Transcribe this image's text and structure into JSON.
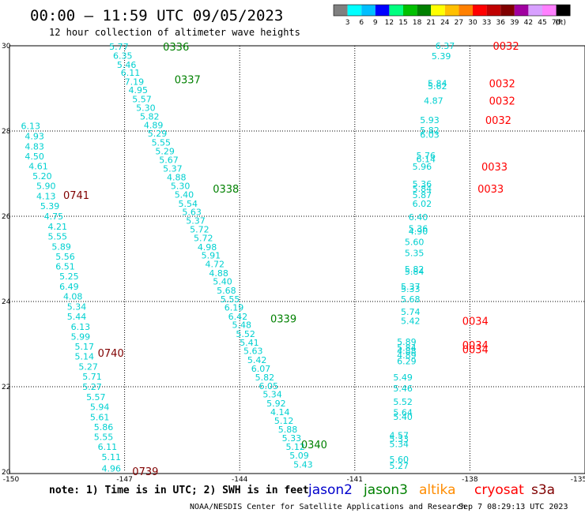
{
  "header": {
    "title": "00:00 — 11:59 UTC 09/05/2023",
    "subtitle": "12 hour collection of altimeter wave heights"
  },
  "colorbar": {
    "unit": "(ft)",
    "ticks": [
      "3",
      "6",
      "9",
      "12",
      "15",
      "18",
      "21",
      "24",
      "27",
      "30",
      "33",
      "36",
      "39",
      "42",
      "45",
      "70"
    ],
    "colors": [
      "#808080",
      "#00ffff",
      "#00bfff",
      "#0000ff",
      "#00ff7f",
      "#00c000",
      "#008000",
      "#ffff00",
      "#ffc000",
      "#ff8000",
      "#ff0000",
      "#c00000",
      "#800000",
      "#a000a0",
      "#d8a0ff",
      "#ff80ff",
      "#000000"
    ]
  },
  "footer": {
    "note": "note:  1) Time is in UTC;  2) SWH is in feet",
    "legend": [
      {
        "label": "jason2",
        "color": "#0000cc"
      },
      {
        "label": "jason3",
        "color": "#008000"
      },
      {
        "label": "altika",
        "color": "#ff8c00"
      },
      {
        "label": "cryosat",
        "color": "#ff0000"
      },
      {
        "label": "s3a",
        "color": "#800000"
      }
    ],
    "credit": "NOAA/NESDIS Center for Satellite Applications and Research",
    "timestamp": "Sep  7 08:29:13 UTC 2023"
  },
  "chart_data": {
    "type": "scatter",
    "xlim": [
      -150,
      -135
    ],
    "ylim": [
      20,
      30
    ],
    "x_ticks": [
      "-150",
      "-147",
      "-144",
      "-141",
      "-138",
      "-135"
    ],
    "y_ticks": [
      "30",
      "28",
      "26",
      "24",
      "22",
      "20"
    ],
    "grid": true,
    "value_color": "#00d0d0",
    "tracks": [
      {
        "name": "",
        "color": "#800000",
        "time_labels": [
          {
            "text": "0741",
            "x": -148.6,
            "y": 26.5
          },
          {
            "text": "0740",
            "x": -147.7,
            "y": 22.8
          },
          {
            "text": "0739",
            "x": -146.8,
            "y": 20.02
          }
        ],
        "points": [
          {
            "x": -149.7,
            "y": 28.12,
            "v": "6.13"
          },
          {
            "x": -149.6,
            "y": 27.88,
            "v": "4.93"
          },
          {
            "x": -149.6,
            "y": 27.64,
            "v": "4.83"
          },
          {
            "x": -149.6,
            "y": 27.41,
            "v": "4.50"
          },
          {
            "x": -149.5,
            "y": 27.18,
            "v": "4.61"
          },
          {
            "x": -149.4,
            "y": 26.94,
            "v": "5.20"
          },
          {
            "x": -149.3,
            "y": 26.71,
            "v": "5.90"
          },
          {
            "x": -149.3,
            "y": 26.47,
            "v": "4.13"
          },
          {
            "x": -149.2,
            "y": 26.24,
            "v": "5.39"
          },
          {
            "x": -149.1,
            "y": 26.0,
            "v": "4.75"
          },
          {
            "x": -149.0,
            "y": 25.76,
            "v": "4.21"
          },
          {
            "x": -149.0,
            "y": 25.53,
            "v": "5.55"
          },
          {
            "x": -148.9,
            "y": 25.29,
            "v": "5.89"
          },
          {
            "x": -148.8,
            "y": 25.06,
            "v": "5.56"
          },
          {
            "x": -148.8,
            "y": 24.82,
            "v": "6.51"
          },
          {
            "x": -148.7,
            "y": 24.59,
            "v": "5.25"
          },
          {
            "x": -148.7,
            "y": 24.35,
            "v": "6.49"
          },
          {
            "x": -148.6,
            "y": 24.12,
            "v": "4.08"
          },
          {
            "x": -148.5,
            "y": 23.88,
            "v": "5.34"
          },
          {
            "x": -148.5,
            "y": 23.65,
            "v": "5.44"
          },
          {
            "x": -148.4,
            "y": 23.41,
            "v": "6.13"
          },
          {
            "x": -148.4,
            "y": 23.18,
            "v": "5.99"
          },
          {
            "x": -148.3,
            "y": 22.94,
            "v": "5.17"
          },
          {
            "x": -148.3,
            "y": 22.71,
            "v": "5.14"
          },
          {
            "x": -148.2,
            "y": 22.47,
            "v": "5.27"
          },
          {
            "x": -148.1,
            "y": 22.24,
            "v": "5.71"
          },
          {
            "x": -148.1,
            "y": 22.0,
            "v": "5.27"
          },
          {
            "x": -148.0,
            "y": 21.76,
            "v": "5.57"
          },
          {
            "x": -147.9,
            "y": 21.53,
            "v": "5.94"
          },
          {
            "x": -147.9,
            "y": 21.29,
            "v": "5.61"
          },
          {
            "x": -147.8,
            "y": 21.06,
            "v": "5.86"
          },
          {
            "x": -147.8,
            "y": 20.82,
            "v": "5.55"
          },
          {
            "x": -147.7,
            "y": 20.59,
            "v": "6.11"
          },
          {
            "x": -147.6,
            "y": 20.35,
            "v": "5.11"
          },
          {
            "x": -147.6,
            "y": 20.08,
            "v": "4.96"
          }
        ]
      },
      {
        "name": "",
        "color": "#008000",
        "time_labels": [
          {
            "text": "0336",
            "x": -146.0,
            "y": 29.98
          },
          {
            "text": "0337",
            "x": -145.7,
            "y": 29.21
          },
          {
            "text": "0338",
            "x": -144.7,
            "y": 26.65
          },
          {
            "text": "0339",
            "x": -143.2,
            "y": 23.6
          },
          {
            "text": "0340",
            "x": -142.4,
            "y": 20.65
          }
        ],
        "points": [
          {
            "x": -147.4,
            "y": 29.98,
            "v": "5.77"
          },
          {
            "x": -147.3,
            "y": 29.77,
            "v": "6.35"
          },
          {
            "x": -147.2,
            "y": 29.56,
            "v": "5.46"
          },
          {
            "x": -147.1,
            "y": 29.37,
            "v": "6.11"
          },
          {
            "x": -147.0,
            "y": 29.16,
            "v": "7.19"
          },
          {
            "x": -146.9,
            "y": 28.96,
            "v": "4.95"
          },
          {
            "x": -146.8,
            "y": 28.75,
            "v": "5.57"
          },
          {
            "x": -146.7,
            "y": 28.55,
            "v": "5.30"
          },
          {
            "x": -146.6,
            "y": 28.34,
            "v": "5.82"
          },
          {
            "x": -146.5,
            "y": 28.14,
            "v": "4.89"
          },
          {
            "x": -146.4,
            "y": 27.94,
            "v": "5.29"
          },
          {
            "x": -146.3,
            "y": 27.73,
            "v": "5.55"
          },
          {
            "x": -146.2,
            "y": 27.53,
            "v": "5.29"
          },
          {
            "x": -146.1,
            "y": 27.32,
            "v": "5.67"
          },
          {
            "x": -146.0,
            "y": 27.12,
            "v": "5.37"
          },
          {
            "x": -145.9,
            "y": 26.92,
            "v": "4.88"
          },
          {
            "x": -145.8,
            "y": 26.71,
            "v": "5.30"
          },
          {
            "x": -145.7,
            "y": 26.51,
            "v": "5.40"
          },
          {
            "x": -145.6,
            "y": 26.3,
            "v": "5.54"
          },
          {
            "x": -145.5,
            "y": 26.1,
            "v": "5.63"
          },
          {
            "x": -145.4,
            "y": 25.9,
            "v": "5.37"
          },
          {
            "x": -145.3,
            "y": 25.69,
            "v": "5.72"
          },
          {
            "x": -145.2,
            "y": 25.49,
            "v": "5.72"
          },
          {
            "x": -145.1,
            "y": 25.28,
            "v": "4.98"
          },
          {
            "x": -145.0,
            "y": 25.08,
            "v": "5.91"
          },
          {
            "x": -144.9,
            "y": 24.88,
            "v": "4.72"
          },
          {
            "x": -144.8,
            "y": 24.67,
            "v": "4.88"
          },
          {
            "x": -144.7,
            "y": 24.47,
            "v": "5.40"
          },
          {
            "x": -144.6,
            "y": 24.26,
            "v": "5.68"
          },
          {
            "x": -144.5,
            "y": 24.06,
            "v": "5.55"
          },
          {
            "x": -144.4,
            "y": 23.86,
            "v": "6.19"
          },
          {
            "x": -144.3,
            "y": 23.65,
            "v": "6.42"
          },
          {
            "x": -144.2,
            "y": 23.45,
            "v": "5.48"
          },
          {
            "x": -144.1,
            "y": 23.24,
            "v": "5.52"
          },
          {
            "x": -144.0,
            "y": 23.04,
            "v": "5.41"
          },
          {
            "x": -143.9,
            "y": 22.84,
            "v": "5.63"
          },
          {
            "x": -143.8,
            "y": 22.63,
            "v": "5.42"
          },
          {
            "x": -143.7,
            "y": 22.43,
            "v": "6.07"
          },
          {
            "x": -143.6,
            "y": 22.22,
            "v": "5.82"
          },
          {
            "x": -143.5,
            "y": 22.02,
            "v": "6.05"
          },
          {
            "x": -143.4,
            "y": 21.82,
            "v": "5.34"
          },
          {
            "x": -143.3,
            "y": 21.61,
            "v": "5.92"
          },
          {
            "x": -143.2,
            "y": 21.41,
            "v": "4.14"
          },
          {
            "x": -143.1,
            "y": 21.2,
            "v": "5.12"
          },
          {
            "x": -143.0,
            "y": 21.0,
            "v": "5.88"
          },
          {
            "x": -142.9,
            "y": 20.8,
            "v": "5.33"
          },
          {
            "x": -142.8,
            "y": 20.59,
            "v": "5.12"
          },
          {
            "x": -142.7,
            "y": 20.39,
            "v": "5.09"
          },
          {
            "x": -142.6,
            "y": 20.18,
            "v": "5.43"
          },
          {
            "x": -142.5,
            "y": 19.98,
            "v": "5.03"
          },
          {
            "x": -142.4,
            "y": 19.78,
            "v": "4.70"
          },
          {
            "x": -142.3,
            "y": 19.57,
            "v": "5.41"
          }
        ]
      },
      {
        "name": "",
        "color": "#ff0000",
        "time_labels": [
          {
            "text": "0032",
            "x": -137.4,
            "y": 30.0
          },
          {
            "text": "0032",
            "x": -137.5,
            "y": 29.12
          },
          {
            "text": "0032",
            "x": -137.5,
            "y": 28.71
          },
          {
            "text": "0032",
            "x": -137.6,
            "y": 28.26
          },
          {
            "text": "0033",
            "x": -137.7,
            "y": 27.17
          },
          {
            "text": "0033",
            "x": -137.8,
            "y": 26.65
          },
          {
            "text": "0034",
            "x": -138.2,
            "y": 23.55
          },
          {
            "text": "0034",
            "x": -138.2,
            "y": 22.98
          },
          {
            "text": "0034",
            "x": -138.2,
            "y": 22.88
          }
        ],
        "points": [
          {
            "x": -138.9,
            "y": 30.0,
            "v": "6.37"
          },
          {
            "x": -139.0,
            "y": 29.76,
            "v": "5.39"
          },
          {
            "x": -139.1,
            "y": 29.12,
            "v": "5.84"
          },
          {
            "x": -139.1,
            "y": 29.06,
            "v": "5.62"
          },
          {
            "x": -139.2,
            "y": 28.71,
            "v": "4.87"
          },
          {
            "x": -139.3,
            "y": 28.26,
            "v": "5.93"
          },
          {
            "x": -139.3,
            "y": 28.02,
            "v": "5.82"
          },
          {
            "x": -139.3,
            "y": 27.92,
            "v": "6.03"
          },
          {
            "x": -139.4,
            "y": 27.43,
            "v": "5.76"
          },
          {
            "x": -139.4,
            "y": 27.34,
            "v": "6.14"
          },
          {
            "x": -139.5,
            "y": 27.17,
            "v": "5.96"
          },
          {
            "x": -139.5,
            "y": 26.76,
            "v": "5.36"
          },
          {
            "x": -139.5,
            "y": 26.65,
            "v": "5.84"
          },
          {
            "x": -139.5,
            "y": 26.5,
            "v": "5.87"
          },
          {
            "x": -139.5,
            "y": 26.3,
            "v": "6.02"
          },
          {
            "x": -139.6,
            "y": 25.98,
            "v": "6.40"
          },
          {
            "x": -139.6,
            "y": 25.71,
            "v": "5.36"
          },
          {
            "x": -139.6,
            "y": 25.65,
            "v": "4.90"
          },
          {
            "x": -139.7,
            "y": 25.4,
            "v": "5.60"
          },
          {
            "x": -139.7,
            "y": 25.14,
            "v": "5.35"
          },
          {
            "x": -139.7,
            "y": 24.76,
            "v": "5.82"
          },
          {
            "x": -139.7,
            "y": 24.7,
            "v": "5.84"
          },
          {
            "x": -139.8,
            "y": 24.35,
            "v": "5.37"
          },
          {
            "x": -139.8,
            "y": 24.3,
            "v": "5.33"
          },
          {
            "x": -139.8,
            "y": 24.06,
            "v": "5.68"
          },
          {
            "x": -139.8,
            "y": 23.76,
            "v": "5.74"
          },
          {
            "x": -139.8,
            "y": 23.55,
            "v": "5.42"
          },
          {
            "x": -139.9,
            "y": 23.06,
            "v": "5.89"
          },
          {
            "x": -139.9,
            "y": 22.92,
            "v": "5.84"
          },
          {
            "x": -139.9,
            "y": 22.84,
            "v": "4.88"
          },
          {
            "x": -139.9,
            "y": 22.74,
            "v": "4.89"
          },
          {
            "x": -139.9,
            "y": 22.6,
            "v": "6.29"
          },
          {
            "x": -140.0,
            "y": 22.22,
            "v": "5.49"
          },
          {
            "x": -140.0,
            "y": 21.96,
            "v": "5.46"
          },
          {
            "x": -140.0,
            "y": 21.65,
            "v": "5.52"
          },
          {
            "x": -140.0,
            "y": 21.4,
            "v": "5.64"
          },
          {
            "x": -140.0,
            "y": 21.3,
            "v": "5.40"
          },
          {
            "x": -140.1,
            "y": 20.86,
            "v": "4.57"
          },
          {
            "x": -140.1,
            "y": 20.78,
            "v": "5.33"
          },
          {
            "x": -140.1,
            "y": 20.66,
            "v": "5.34"
          },
          {
            "x": -140.1,
            "y": 20.3,
            "v": "5.60"
          },
          {
            "x": -140.1,
            "y": 20.15,
            "v": "5.27"
          }
        ]
      }
    ]
  }
}
